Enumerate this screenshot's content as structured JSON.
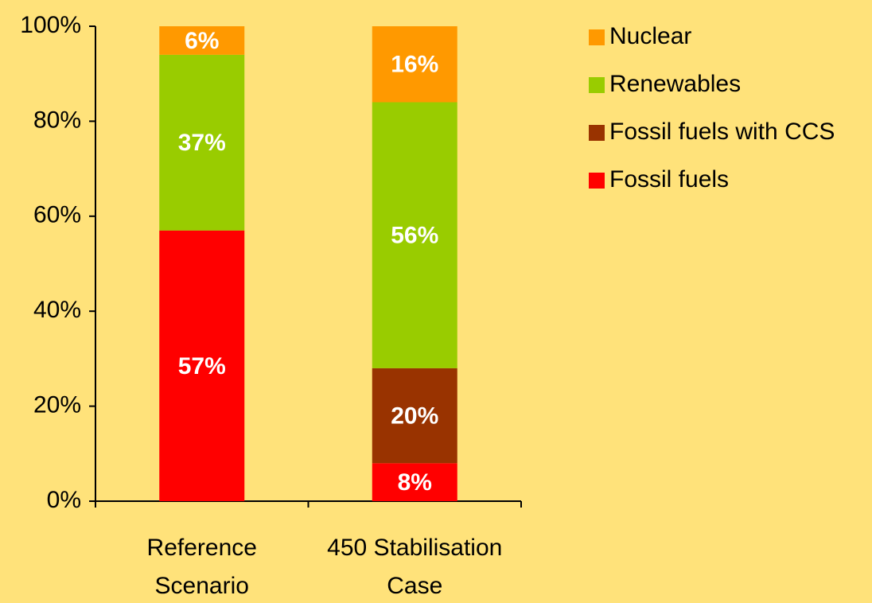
{
  "chart_data": {
    "type": "stacked_bar",
    "categories": [
      "Reference Scenario",
      "450 Stabilisation Case"
    ],
    "series": [
      {
        "name": "Fossil fuels",
        "color": "#ff0000",
        "values": [
          57,
          8
        ],
        "value_labels": [
          "57%",
          "8%"
        ]
      },
      {
        "name": "Fossil fuels with CCS",
        "color": "#993300",
        "values": [
          0,
          20
        ],
        "value_labels": [
          null,
          "20%"
        ]
      },
      {
        "name": "Renewables",
        "color": "#99cc00",
        "values": [
          37,
          56
        ],
        "value_labels": [
          "37%",
          "56%"
        ]
      },
      {
        "name": "Nuclear",
        "color": "#ff9900",
        "values": [
          6,
          16
        ],
        "value_labels": [
          "6%",
          "16%"
        ]
      }
    ],
    "ylim": [
      0,
      100
    ],
    "yticks": [
      {
        "value": 0,
        "label": "0%"
      },
      {
        "value": 20,
        "label": "20%"
      },
      {
        "value": 40,
        "label": "40%"
      },
      {
        "value": 60,
        "label": "60%"
      },
      {
        "value": 80,
        "label": "80%"
      },
      {
        "value": 100,
        "label": "100%"
      }
    ],
    "legend": "right"
  }
}
